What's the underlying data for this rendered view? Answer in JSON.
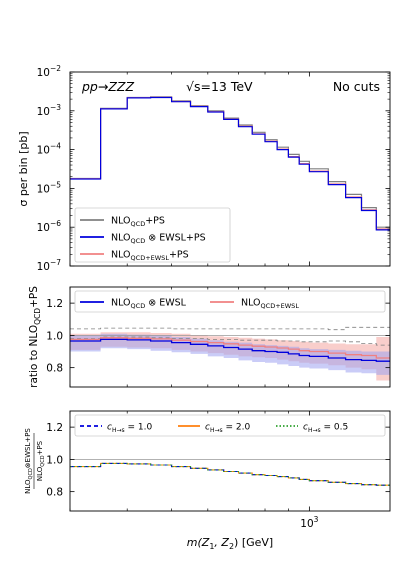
{
  "chart_data": [
    {
      "type": "line",
      "scale_y": "log",
      "ylim": [
        1e-07,
        0.01
      ],
      "ylabel": "σ per bin [pb]",
      "ytick_labels": [
        {
          "b": "10",
          "e": "−7",
          "v": 1e-07
        },
        {
          "b": "10",
          "e": "−6",
          "v": 1e-06
        },
        {
          "b": "10",
          "e": "−5",
          "v": 1e-05
        },
        {
          "b": "10",
          "e": "−4",
          "v": 0.0001
        },
        {
          "b": "10",
          "e": "−3",
          "v": 0.001
        },
        {
          "b": "10",
          "e": "−2",
          "v": 0.01
        }
      ],
      "annotations": {
        "process": "pp→ZZZ",
        "energy": "√s=13 TeV",
        "cuts": "No cuts"
      },
      "legend_position": "lower-left",
      "legend": [
        {
          "text": "NLO",
          "sub": "QCD",
          "suffix": "+PS",
          "color": "#808080"
        },
        {
          "text": "NLO",
          "sub": "QCD",
          "suffix": " ⊗ EWSL+PS",
          "color": "#0000dd"
        },
        {
          "text": "NLO",
          "sub": "QCD+EWSL",
          "suffix": "+PS",
          "color": "#f08080"
        }
      ],
      "bin_edges": [
        300,
        350,
        400,
        450,
        500,
        550,
        600,
        650,
        700,
        750,
        800,
        850,
        900,
        950,
        1000,
        1100,
        1200,
        1300,
        1400,
        1500
      ],
      "series": [
        {
          "name": "NLO_QCD+PS",
          "color": "#808080",
          "values": [
            1.8e-05,
            0.00115,
            0.0022,
            0.0023,
            0.0018,
            0.00135,
            0.001,
            0.00065,
            0.00043,
            0.00028,
            0.00018,
            0.000115,
            7.5e-05,
            5e-05,
            3.2e-05,
            1.5e-05,
            7e-06,
            3.2e-06,
            1e-06
          ]
        },
        {
          "name": "NLO_QCD ⊗ EWSL+PS",
          "color": "#0000dd",
          "values": [
            1.75e-05,
            0.00112,
            0.00215,
            0.0022,
            0.00172,
            0.00128,
            0.00093,
            0.0006,
            0.00039,
            0.00025,
            0.00016,
            0.0001,
            6.4e-05,
            4.2e-05,
            2.7e-05,
            1.25e-05,
            5.8e-06,
            2.7e-06,
            8.5e-07
          ]
        },
        {
          "name": "NLO_QCD+EWSL+PS",
          "color": "#f08080",
          "values": [
            1.78e-05,
            0.00113,
            0.00217,
            0.00222,
            0.00174,
            0.0013,
            0.00095,
            0.00061,
            0.0004,
            0.000255,
            0.000165,
            0.000103,
            6.6e-05,
            4.35e-05,
            2.8e-05,
            1.3e-05,
            6e-06,
            2.8e-06,
            9e-07
          ]
        }
      ]
    },
    {
      "type": "line",
      "ylim": [
        0.68,
        1.3
      ],
      "ylabel": {
        "text": "ratio to NLO",
        "sub": "QCD",
        "suffix": "+PS"
      },
      "ytick_labels": [
        "0.8",
        "1.0",
        "1.2"
      ],
      "ytick_values": [
        0.8,
        1.0,
        1.2
      ],
      "legend_position": "top",
      "legend": [
        {
          "text": "NLO",
          "sub": "QCD",
          "suffix": " ⊗ EWSL",
          "color": "#0000dd"
        },
        {
          "text": "NLO",
          "sub": "QCD+EWSL",
          "suffix": "",
          "color": "#f08080"
        }
      ],
      "bin_edges": [
        300,
        350,
        400,
        450,
        500,
        550,
        600,
        650,
        700,
        750,
        800,
        850,
        900,
        950,
        1000,
        1100,
        1200,
        1300,
        1400,
        1500
      ],
      "series": [
        {
          "name": "NLO_QCD ⊗ EWSL",
          "color": "#0000dd",
          "values": [
            0.965,
            0.975,
            0.972,
            0.965,
            0.955,
            0.945,
            0.935,
            0.925,
            0.915,
            0.905,
            0.9,
            0.895,
            0.885,
            0.875,
            0.87,
            0.86,
            0.85,
            0.845,
            0.84
          ],
          "band_lo": [
            0.9,
            0.92,
            0.915,
            0.905,
            0.895,
            0.885,
            0.87,
            0.86,
            0.845,
            0.835,
            0.83,
            0.82,
            0.81,
            0.8,
            0.795,
            0.785,
            0.77,
            0.765,
            0.755
          ],
          "band_hi": [
            1.0,
            1.01,
            1.005,
            1.0,
            0.99,
            0.98,
            0.97,
            0.96,
            0.955,
            0.945,
            0.94,
            0.935,
            0.93,
            0.92,
            0.915,
            0.91,
            0.905,
            0.9,
            0.9
          ]
        },
        {
          "name": "NLO_QCD+EWSL",
          "color": "#f08080",
          "values": [
            0.975,
            0.985,
            0.982,
            0.978,
            0.97,
            0.962,
            0.955,
            0.948,
            0.94,
            0.933,
            0.928,
            0.922,
            0.915,
            0.905,
            0.9,
            0.89,
            0.88,
            0.875,
            0.86
          ],
          "band_lo": [
            0.91,
            0.93,
            0.925,
            0.92,
            0.91,
            0.9,
            0.89,
            0.88,
            0.87,
            0.865,
            0.86,
            0.85,
            0.84,
            0.83,
            0.825,
            0.815,
            0.8,
            0.79,
            0.72
          ],
          "band_hi": [
            1.01,
            1.02,
            1.02,
            1.015,
            1.01,
            1.0,
            0.995,
            0.99,
            0.985,
            0.98,
            0.975,
            0.97,
            0.965,
            0.96,
            0.955,
            0.95,
            0.945,
            0.945,
            0.99
          ]
        },
        {
          "name": "scale_band_upper",
          "color": "#808080",
          "style": "dashed",
          "values": [
            1.04,
            1.045,
            1.045,
            1.045,
            1.04,
            1.04,
            1.04,
            1.04,
            1.04,
            1.04,
            1.04,
            1.04,
            1.04,
            1.04,
            1.04,
            1.035,
            1.05,
            1.05,
            1.05
          ]
        },
        {
          "name": "scale_band_lower",
          "color": "#808080",
          "style": "dashed",
          "values": [
            0.98,
            0.99,
            0.99,
            0.985,
            0.98,
            0.98,
            0.975,
            0.975,
            0.97,
            0.97,
            0.97,
            0.965,
            0.965,
            0.96,
            0.96,
            0.965,
            0.96,
            0.95,
            0.94
          ]
        }
      ]
    },
    {
      "type": "line",
      "ylim": [
        0.68,
        1.3
      ],
      "ylabel": {
        "num": "NLO",
        "num_sub": "QCD",
        "num_suffix": "⊗EWSL+PS",
        "den": "NLO",
        "den_sub": "QCD",
        "den_suffix": "+PS"
      },
      "ytick_labels": [
        "0.8",
        "1.0",
        "1.2"
      ],
      "ytick_values": [
        0.8,
        1.0,
        1.2
      ],
      "xlabel": {
        "text": "m(Z",
        "s1": "1",
        "mid": ", Z",
        "s2": "2",
        "suffix": ") [GeV]"
      },
      "xtick_label": {
        "b": "10",
        "e": "3",
        "v": 1000
      },
      "xlim": [
        300,
        1500
      ],
      "scale_x": "log",
      "legend_position": "top",
      "legend": [
        {
          "text": "c",
          "sub": "H→s",
          "suffix": " = 1.0",
          "color": "#0000dd",
          "style": "dashed"
        },
        {
          "text": "c",
          "sub": "H→s",
          "suffix": " = 2.0",
          "color": "#ff7f0e",
          "style": "solid"
        },
        {
          "text": "c",
          "sub": "H→s",
          "suffix": " = 0.5",
          "color": "#2ca02c",
          "style": "dotted"
        }
      ],
      "bin_edges": [
        300,
        350,
        400,
        450,
        500,
        550,
        600,
        650,
        700,
        750,
        800,
        850,
        900,
        950,
        1000,
        1100,
        1200,
        1300,
        1400,
        1500
      ],
      "series": [
        {
          "name": "c_H→s = 1.0",
          "color": "#0000dd",
          "values": [
            0.955,
            0.975,
            0.972,
            0.965,
            0.955,
            0.945,
            0.935,
            0.925,
            0.915,
            0.905,
            0.9,
            0.893,
            0.885,
            0.876,
            0.868,
            0.858,
            0.85,
            0.843,
            0.84
          ]
        },
        {
          "name": "c_H→s = 2.0",
          "color": "#ff7f0e",
          "values": [
            0.955,
            0.975,
            0.972,
            0.965,
            0.955,
            0.945,
            0.935,
            0.925,
            0.915,
            0.905,
            0.9,
            0.893,
            0.885,
            0.876,
            0.868,
            0.858,
            0.85,
            0.843,
            0.84
          ]
        },
        {
          "name": "c_H→s = 0.5",
          "color": "#2ca02c",
          "values": [
            0.955,
            0.975,
            0.972,
            0.965,
            0.955,
            0.945,
            0.935,
            0.925,
            0.915,
            0.905,
            0.9,
            0.893,
            0.885,
            0.876,
            0.868,
            0.858,
            0.85,
            0.843,
            0.84
          ]
        }
      ]
    }
  ]
}
